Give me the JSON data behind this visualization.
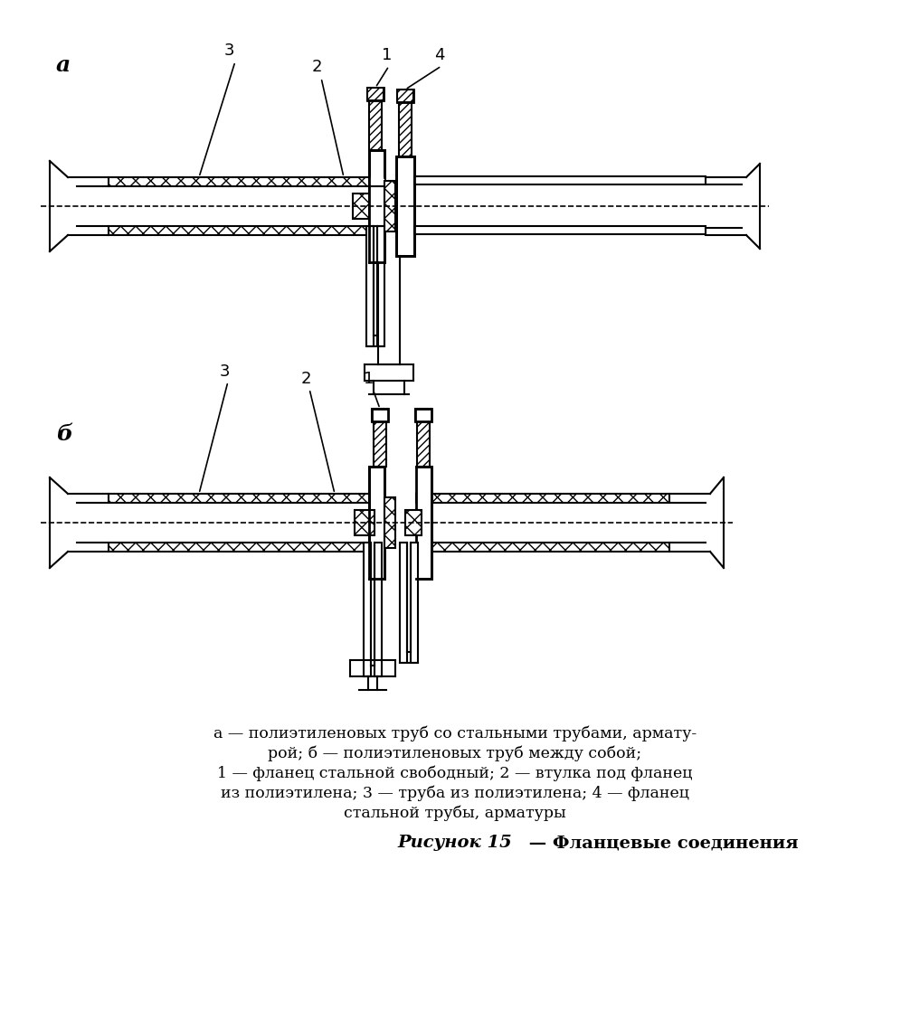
{
  "title_a": "а",
  "title_b": "б",
  "figure_title": "Рисунок 15",
  "figure_dash": " — ",
  "figure_subtitle": "Фланцевые соединения",
  "caption_line1": "а — полиэтиленовых труб со стальными трубами, армату-",
  "caption_line2": "рой; б — полиэтиленовых труб между собой;",
  "caption_line3": "1 — фланец стальной свободный; 2 — втулка под фланец",
  "caption_line4": "из полиэтилена; 3 — труба из полиэтилена; 4 — фланец",
  "caption_line5": "стальной трубы, арматуры",
  "bg_color": "#ffffff",
  "line_color": "#000000",
  "hatch_color": "#000000",
  "hatch_bg": "#ffffff"
}
